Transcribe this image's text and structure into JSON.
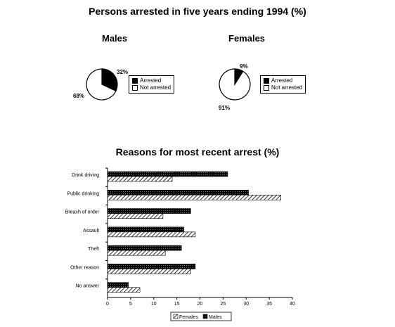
{
  "title": "Persons arrested in five years ending 1994 (%)",
  "pies": [
    {
      "name": "Males",
      "slices": [
        {
          "label": "Arrested",
          "value": 32,
          "display": "32%"
        },
        {
          "label": "Not arrested",
          "value": 68,
          "display": "68%"
        }
      ],
      "legend": [
        "Arrested",
        "Not arrested"
      ]
    },
    {
      "name": "Females",
      "slices": [
        {
          "label": "Arrested",
          "value": 9,
          "display": "9%"
        },
        {
          "label": "Not arrested",
          "value": 91,
          "display": "91%"
        }
      ],
      "legend": [
        "Arrested",
        "Not arrested"
      ]
    }
  ],
  "bar_title": "Reasons for most recent arrest (%)",
  "colors": {
    "filled": "#000000",
    "outline": "#000000"
  },
  "chart_data": [
    {
      "type": "pie",
      "title": "Males",
      "labels": [
        "Arrested",
        "Not arrested"
      ],
      "values": [
        32,
        68
      ]
    },
    {
      "type": "pie",
      "title": "Females",
      "labels": [
        "Arrested",
        "Not arrested"
      ],
      "values": [
        9,
        91
      ]
    },
    {
      "type": "bar",
      "orientation": "horizontal",
      "title": "Reasons for most recent arrest (%)",
      "categories": [
        "Drink driving",
        "Public drinking",
        "Breach of order",
        "Assault",
        "Theft",
        "Other reason",
        "No answer"
      ],
      "series": [
        {
          "name": "Males",
          "values": [
            26,
            30.5,
            18,
            16.5,
            16,
            19,
            4.5
          ]
        },
        {
          "name": "Females",
          "values": [
            14,
            37.5,
            12,
            19,
            12.5,
            18,
            7
          ]
        }
      ],
      "xlim": [
        0,
        40
      ],
      "xticks": [
        "0",
        "5",
        "10",
        "15",
        "20",
        "25",
        "30",
        "35",
        "40"
      ],
      "legend": [
        "Females",
        "Males"
      ],
      "legend_position": "bottom"
    }
  ]
}
